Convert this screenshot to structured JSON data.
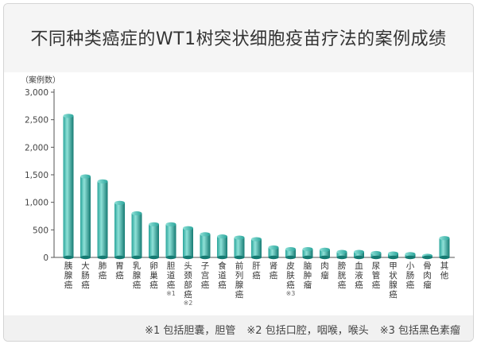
{
  "title": "不同种类癌症的WT1树突状细胞疫苗疗法的案例成绩",
  "footnotes": [
    "※1 包括胆囊，胆管",
    "※2 包括口腔，咽喉，喉头",
    "※3 包括黑色素瘤"
  ],
  "colors": {
    "bar": "#2aa59b",
    "bar_light": "#8fe1d8",
    "bar_dark": "#157a72",
    "axis": "#555555",
    "title_band": "#f5f5f5"
  },
  "chart_data": {
    "type": "bar",
    "ylabel": "（案例数）",
    "ylim": [
      0,
      3000
    ],
    "yticks": [
      "0",
      "500",
      "1,000",
      "1,500",
      "2,000",
      "2,500",
      "3,000"
    ],
    "ytick_values": [
      0,
      500,
      1000,
      1500,
      2000,
      2500,
      3000
    ],
    "grid": false,
    "categories": [
      "胰腺癌",
      "大肠癌",
      "肺癌",
      "胃癌",
      "乳腺癌",
      "卵巢癌",
      "胆道癌",
      "头颈部癌",
      "子宫癌",
      "食道癌",
      "前列腺癌",
      "肝癌",
      "肾癌",
      "皮肤癌",
      "脑肿瘤",
      "肉瘤",
      "膀胱癌",
      "血液癌",
      "尿管癌",
      "甲状腺癌",
      "小肠癌",
      "骨肉瘤",
      "其他"
    ],
    "category_notes": [
      "",
      "",
      "",
      "",
      "",
      "",
      "※1",
      "※2",
      "",
      "",
      "",
      "",
      "",
      "※3",
      "",
      "",
      "",
      "",
      "",
      "",
      "",
      "",
      ""
    ],
    "values": [
      2570,
      1470,
      1380,
      990,
      800,
      600,
      600,
      530,
      420,
      380,
      360,
      330,
      180,
      150,
      150,
      140,
      100,
      100,
      80,
      70,
      60,
      30,
      350
    ]
  }
}
